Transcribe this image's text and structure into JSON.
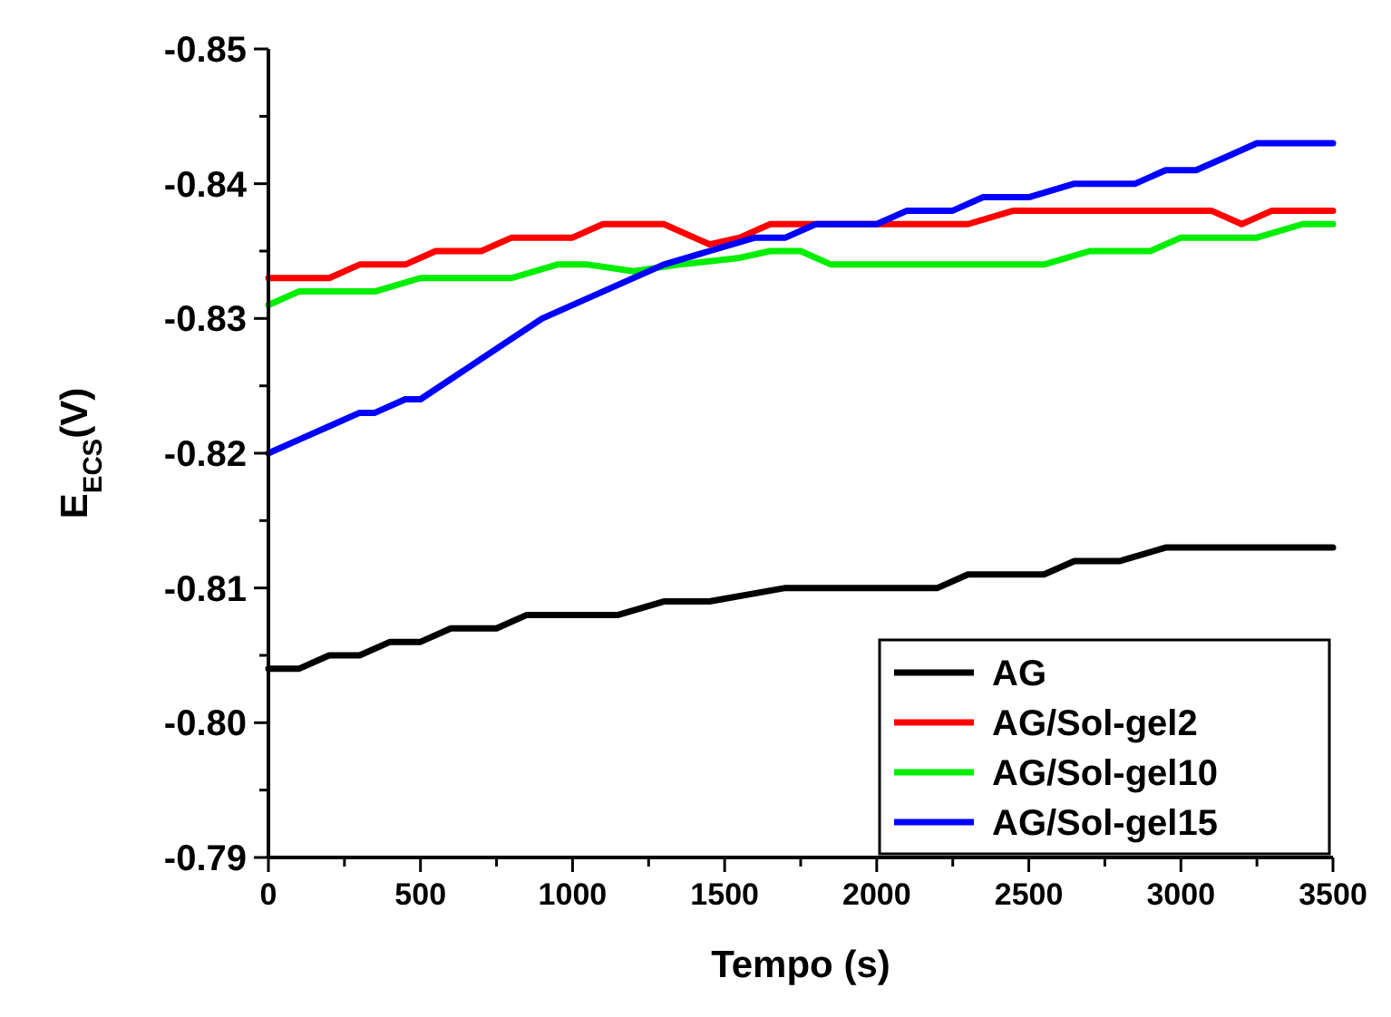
{
  "chart_data": {
    "type": "line",
    "xlabel": "Tempo (s)",
    "ylabel": "E$_{ECS}$(V)",
    "xlim": [
      0,
      3500
    ],
    "xticks": [
      0,
      {
        "value": 250,
        "label": null
      },
      500,
      {
        "value": 750,
        "label": null
      },
      1000,
      {
        "value": 1250,
        "label": null
      },
      1500,
      {
        "value": 1750,
        "label": null
      },
      2000,
      {
        "value": 2250,
        "label": null
      },
      2500,
      {
        "value": 2750,
        "label": null
      },
      3000,
      {
        "value": 3250,
        "label": null
      },
      3500
    ],
    "ylim": [
      -0.79,
      -0.85
    ],
    "yticks": [
      -0.79,
      {
        "value": -0.795,
        "label": null
      },
      {
        "value": -0.8,
        "label": "-0.80"
      },
      {
        "value": -0.805,
        "label": null
      },
      -0.81,
      {
        "value": -0.815,
        "label": null
      },
      -0.82,
      {
        "value": -0.825,
        "label": null
      },
      -0.83,
      {
        "value": -0.835,
        "label": null
      },
      -0.84,
      {
        "value": -0.845,
        "label": null
      },
      -0.85
    ],
    "grid": false,
    "legend": "bottom right",
    "line_style": "solid",
    "marker": "none",
    "series": [
      {
        "name": "AG",
        "color": "#000000",
        "x": [
          0,
          100,
          200,
          300,
          400,
          500,
          600,
          750,
          850,
          1150,
          1300,
          1450,
          1700,
          2200,
          2300,
          2550,
          2650,
          2800,
          2950,
          3500
        ],
        "values": [
          -0.804,
          -0.804,
          -0.805,
          -0.805,
          -0.806,
          -0.806,
          -0.807,
          -0.807,
          -0.808,
          -0.808,
          -0.809,
          -0.809,
          -0.81,
          -0.81,
          -0.811,
          -0.811,
          -0.812,
          -0.812,
          -0.813,
          -0.813
        ]
      },
      {
        "name": "AG/Sol-gel2",
        "color": "#ff0000",
        "x": [
          0,
          200,
          300,
          450,
          550,
          700,
          800,
          1000,
          1100,
          1300,
          1450,
          1550,
          1650,
          2300,
          2450,
          3100,
          3200,
          3300,
          3500
        ],
        "values": [
          -0.833,
          -0.833,
          -0.834,
          -0.834,
          -0.835,
          -0.835,
          -0.836,
          -0.836,
          -0.837,
          -0.837,
          -0.8355,
          -0.836,
          -0.837,
          -0.837,
          -0.838,
          -0.838,
          -0.837,
          -0.838,
          -0.838
        ]
      },
      {
        "name": "AG/Sol-gel10",
        "color": "#00ee00",
        "x": [
          0,
          100,
          350,
          500,
          800,
          950,
          1050,
          1200,
          1350,
          1550,
          1650,
          1750,
          1850,
          2550,
          2700,
          2900,
          3000,
          3250,
          3400,
          3500
        ],
        "values": [
          -0.831,
          -0.832,
          -0.832,
          -0.833,
          -0.833,
          -0.834,
          -0.834,
          -0.8335,
          -0.834,
          -0.8345,
          -0.835,
          -0.835,
          -0.834,
          -0.834,
          -0.835,
          -0.835,
          -0.836,
          -0.836,
          -0.837,
          -0.837
        ]
      },
      {
        "name": "AG/Sol-gel15",
        "color": "#0000ff",
        "x": [
          0,
          100,
          200,
          300,
          350,
          450,
          500,
          700,
          900,
          1100,
          1300,
          1450,
          1600,
          1700,
          1800,
          2000,
          2100,
          2250,
          2350,
          2500,
          2650,
          2850,
          2950,
          3050,
          3150,
          3250,
          3500
        ],
        "values": [
          -0.82,
          -0.821,
          -0.822,
          -0.823,
          -0.823,
          -0.824,
          -0.824,
          -0.827,
          -0.83,
          -0.832,
          -0.834,
          -0.835,
          -0.836,
          -0.836,
          -0.837,
          -0.837,
          -0.838,
          -0.838,
          -0.839,
          -0.839,
          -0.84,
          -0.84,
          -0.841,
          -0.841,
          -0.842,
          -0.843,
          -0.843
        ]
      }
    ]
  }
}
